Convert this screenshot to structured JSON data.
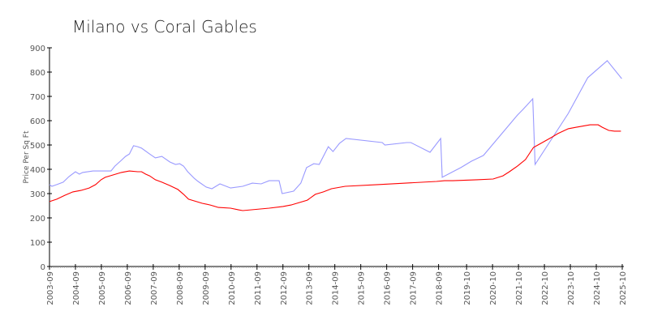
{
  "chart_data": {
    "type": "line",
    "title": "Milano vs Coral Gables",
    "xlabel": "",
    "ylabel": "Price Per Sq Ft",
    "ylim": [
      0,
      900
    ],
    "xlim": [
      2003.67,
      2025.75
    ],
    "yticks": [
      0,
      100,
      200,
      300,
      400,
      500,
      600,
      700,
      800,
      900
    ],
    "xticks": [
      {
        "label": "2003-09",
        "x": 2003.67
      },
      {
        "label": "2004-09",
        "x": 2004.67
      },
      {
        "label": "2005-09",
        "x": 2005.67
      },
      {
        "label": "2006-09",
        "x": 2006.67
      },
      {
        "label": "2007-09",
        "x": 2007.67
      },
      {
        "label": "2008-09",
        "x": 2008.67
      },
      {
        "label": "2009-09",
        "x": 2009.67
      },
      {
        "label": "2010-09",
        "x": 2010.67
      },
      {
        "label": "2011-09",
        "x": 2011.67
      },
      {
        "label": "2012-09",
        "x": 2012.67
      },
      {
        "label": "2013-09",
        "x": 2013.67
      },
      {
        "label": "2014-09",
        "x": 2014.67
      },
      {
        "label": "2015-09",
        "x": 2015.67
      },
      {
        "label": "2016-09",
        "x": 2016.67
      },
      {
        "label": "2017-09",
        "x": 2017.67
      },
      {
        "label": "2018-09",
        "x": 2018.67
      },
      {
        "label": "2019-10",
        "x": 2019.75
      },
      {
        "label": "2020-10",
        "x": 2020.75
      },
      {
        "label": "2021-10",
        "x": 2021.75
      },
      {
        "label": "2022-10",
        "x": 2022.75
      },
      {
        "label": "2023-10",
        "x": 2023.75
      },
      {
        "label": "2024-10",
        "x": 2024.75
      },
      {
        "label": "2025-10",
        "x": 2025.75
      }
    ],
    "grid": false,
    "series": [
      {
        "name": "Milano",
        "color": "#9999ff",
        "points": [
          [
            2003.67,
            337
          ],
          [
            2003.76,
            330
          ],
          [
            2003.95,
            337
          ],
          [
            2004.2,
            347
          ],
          [
            2004.42,
            370
          ],
          [
            2004.67,
            390
          ],
          [
            2004.82,
            380
          ],
          [
            2004.95,
            387
          ],
          [
            2005.35,
            393
          ],
          [
            2006.04,
            393
          ],
          [
            2006.19,
            413
          ],
          [
            2006.44,
            437
          ],
          [
            2006.6,
            453
          ],
          [
            2006.75,
            463
          ],
          [
            2006.91,
            497
          ],
          [
            2007.07,
            493
          ],
          [
            2007.22,
            487
          ],
          [
            2007.53,
            463
          ],
          [
            2007.75,
            447
          ],
          [
            2008.0,
            453
          ],
          [
            2008.31,
            430
          ],
          [
            2008.53,
            420
          ],
          [
            2008.69,
            423
          ],
          [
            2008.84,
            413
          ],
          [
            2009.0,
            390
          ],
          [
            2009.25,
            363
          ],
          [
            2009.4,
            350
          ],
          [
            2009.71,
            327
          ],
          [
            2009.93,
            320
          ],
          [
            2010.24,
            340
          ],
          [
            2010.65,
            323
          ],
          [
            2011.12,
            330
          ],
          [
            2011.49,
            343
          ],
          [
            2011.83,
            340
          ],
          [
            2012.14,
            353
          ],
          [
            2012.52,
            353
          ],
          [
            2012.64,
            300
          ],
          [
            2013.08,
            310
          ],
          [
            2013.36,
            343
          ],
          [
            2013.58,
            407
          ],
          [
            2013.86,
            423
          ],
          [
            2014.07,
            420
          ],
          [
            2014.42,
            493
          ],
          [
            2014.6,
            473
          ],
          [
            2014.85,
            507
          ],
          [
            2015.1,
            527
          ],
          [
            2016.5,
            510
          ],
          [
            2016.6,
            500
          ],
          [
            2017.44,
            510
          ],
          [
            2017.6,
            510
          ],
          [
            2018.34,
            470
          ],
          [
            2018.75,
            527
          ],
          [
            2018.81,
            367
          ],
          [
            2019.22,
            390
          ],
          [
            2019.53,
            407
          ],
          [
            2019.93,
            433
          ],
          [
            2020.4,
            457
          ],
          [
            2021.71,
            623
          ],
          [
            2021.93,
            647
          ],
          [
            2022.3,
            690
          ],
          [
            2022.39,
            420
          ],
          [
            2023.67,
            630
          ],
          [
            2024.42,
            777
          ],
          [
            2025.17,
            847
          ],
          [
            2025.73,
            773
          ]
        ]
      },
      {
        "name": "Coral Gables",
        "color": "#ff0000",
        "points": [
          [
            2003.67,
            267
          ],
          [
            2003.95,
            277
          ],
          [
            2004.26,
            293
          ],
          [
            2004.57,
            307
          ],
          [
            2004.88,
            313
          ],
          [
            2005.2,
            323
          ],
          [
            2005.45,
            337
          ],
          [
            2005.66,
            357
          ],
          [
            2005.82,
            367
          ],
          [
            2006.13,
            377
          ],
          [
            2006.44,
            387
          ],
          [
            2006.75,
            393
          ],
          [
            2007.07,
            390
          ],
          [
            2007.22,
            390
          ],
          [
            2007.38,
            380
          ],
          [
            2007.53,
            373
          ],
          [
            2007.75,
            357
          ],
          [
            2008.0,
            347
          ],
          [
            2008.31,
            333
          ],
          [
            2008.62,
            317
          ],
          [
            2008.84,
            297
          ],
          [
            2009.03,
            277
          ],
          [
            2009.25,
            270
          ],
          [
            2009.56,
            260
          ],
          [
            2009.87,
            253
          ],
          [
            2010.18,
            243
          ],
          [
            2010.65,
            240
          ],
          [
            2010.96,
            233
          ],
          [
            2011.12,
            230
          ],
          [
            2012.14,
            240
          ],
          [
            2012.67,
            247
          ],
          [
            2012.98,
            253
          ],
          [
            2013.61,
            273
          ],
          [
            2013.92,
            297
          ],
          [
            2014.23,
            307
          ],
          [
            2014.54,
            320
          ],
          [
            2015.07,
            330
          ],
          [
            2016.32,
            337
          ],
          [
            2018.59,
            350
          ],
          [
            2018.9,
            353
          ],
          [
            2019.22,
            353
          ],
          [
            2020.15,
            357
          ],
          [
            2020.77,
            360
          ],
          [
            2021.15,
            373
          ],
          [
            2021.4,
            390
          ],
          [
            2021.71,
            413
          ],
          [
            2022.02,
            440
          ],
          [
            2022.33,
            490
          ],
          [
            2022.55,
            503
          ],
          [
            2023.05,
            533
          ],
          [
            2023.27,
            547
          ],
          [
            2023.67,
            567
          ],
          [
            2023.98,
            573
          ],
          [
            2024.51,
            583
          ],
          [
            2024.82,
            583
          ],
          [
            2024.98,
            573
          ],
          [
            2025.23,
            560
          ],
          [
            2025.45,
            557
          ],
          [
            2025.7,
            557
          ]
        ]
      }
    ]
  }
}
